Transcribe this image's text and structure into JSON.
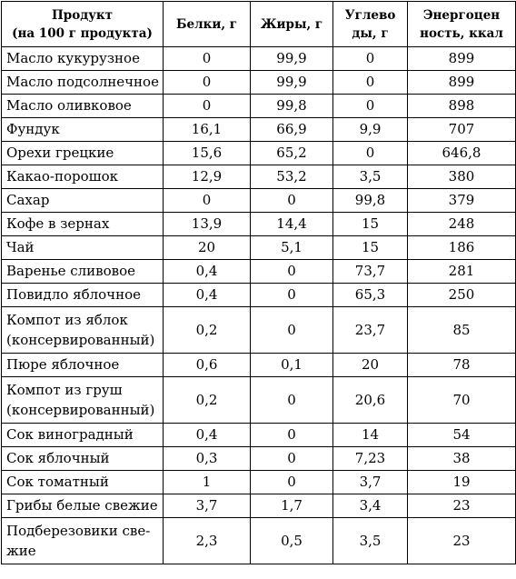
{
  "table": {
    "headers": [
      "Продукт\n(на 100 г продукта)",
      "Белки, г",
      "Жиры, г",
      "Углево\nды, г",
      "Энергоцен\nность, ккал"
    ],
    "rows": [
      [
        "Масло кукурузное",
        "0",
        "99,9",
        "0",
        "899"
      ],
      [
        "Масло подсолнечное",
        "0",
        "99,9",
        "0",
        "899"
      ],
      [
        "Масло оливковое",
        "0",
        "99,8",
        "0",
        "898"
      ],
      [
        "Фундук",
        "16,1",
        "66,9",
        "9,9",
        "707"
      ],
      [
        "Орехи грецкие",
        "15,6",
        "65,2",
        "0",
        "646,8"
      ],
      [
        "Какао-порошок",
        "12,9",
        "53,2",
        "3,5",
        "380"
      ],
      [
        "Сахар",
        "0",
        "0",
        "99,8",
        "379"
      ],
      [
        "Кофе в зернах",
        "13,9",
        "14,4",
        "15",
        "248"
      ],
      [
        "Чай",
        "20",
        "5,1",
        "15",
        "186"
      ],
      [
        "Варенье сливовое",
        "0,4",
        "0",
        "73,7",
        "281"
      ],
      [
        "Повидло яблочное",
        "0,4",
        "0",
        "65,3",
        "250"
      ],
      [
        "Компот из яблок\n(консервированный)",
        "0,2",
        "0",
        "23,7",
        "85"
      ],
      [
        "Пюре яблочное",
        "0,6",
        "0,1",
        "20",
        "78"
      ],
      [
        "Компот из груш\n(консервированный)",
        "0,2",
        "0",
        "20,6",
        "70"
      ],
      [
        "Сок виноградный",
        "0,4",
        "0",
        "14",
        "54"
      ],
      [
        "Сок яблочный",
        "0,3",
        "0",
        "7,23",
        "38"
      ],
      [
        "Сок томатный",
        "1",
        "0",
        "3,7",
        "19"
      ],
      [
        "Грибы белые свежие",
        "3,7",
        "1,7",
        "3,4",
        "23"
      ],
      [
        "Подберезовики све-\nжие",
        "2,3",
        "0,5",
        "3,5",
        "23"
      ]
    ]
  }
}
